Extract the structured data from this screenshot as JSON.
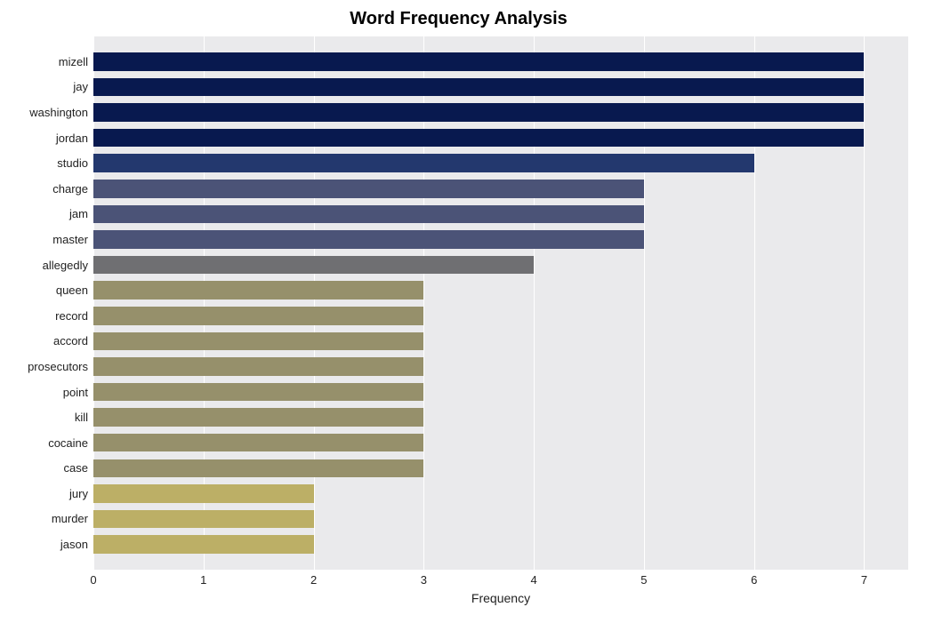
{
  "chart": {
    "type": "bar-horizontal",
    "title": "Word Frequency Analysis",
    "title_fontsize": 20,
    "title_weight": "bold",
    "xlabel": "Frequency",
    "label_fontsize": 14,
    "tick_fontsize": 13,
    "background_color": "#eaeaec",
    "grid_color": "#ffffff",
    "xlim": [
      0,
      7.4
    ],
    "xticks": [
      0,
      1,
      2,
      3,
      4,
      5,
      6,
      7
    ],
    "bar_height_ratio": 0.72,
    "categories": [
      "mizell",
      "jay",
      "washington",
      "jordan",
      "studio",
      "charge",
      "jam",
      "master",
      "allegedly",
      "queen",
      "record",
      "accord",
      "prosecutors",
      "point",
      "kill",
      "cocaine",
      "case",
      "jury",
      "murder",
      "jason"
    ],
    "values": [
      7,
      7,
      7,
      7,
      6,
      5,
      5,
      5,
      4,
      3,
      3,
      3,
      3,
      3,
      3,
      3,
      3,
      2,
      2,
      2
    ],
    "bar_colors": [
      "#08194f",
      "#08194f",
      "#08194f",
      "#08194f",
      "#23386e",
      "#4b5377",
      "#4b5377",
      "#4b5377",
      "#6f6f72",
      "#96906b",
      "#96906b",
      "#96906b",
      "#96906b",
      "#96906b",
      "#96906b",
      "#96906b",
      "#96906b",
      "#bcaf66",
      "#bcaf66",
      "#bcaf66"
    ]
  }
}
